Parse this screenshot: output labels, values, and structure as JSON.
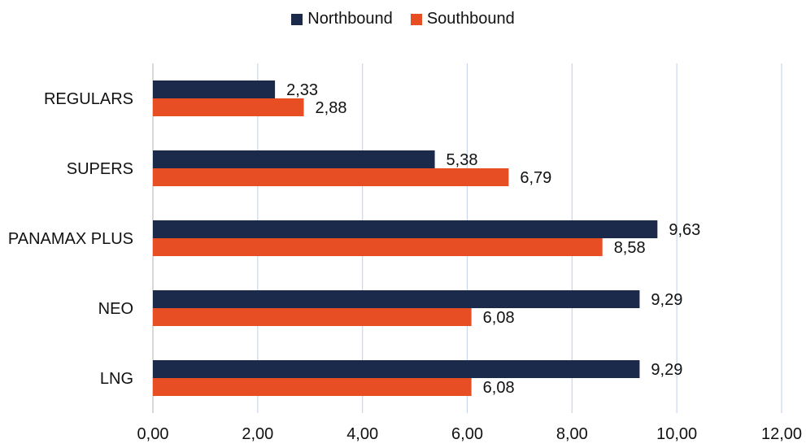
{
  "chart_data": {
    "type": "bar",
    "orientation": "horizontal",
    "categories": [
      "REGULARS",
      "SUPERS",
      "PANAMAX PLUS",
      "NEO",
      "LNG"
    ],
    "series": [
      {
        "name": "Northbound",
        "color": "#1b2a4a",
        "values": [
          2.33,
          5.38,
          9.63,
          9.29,
          9.29
        ],
        "labels": [
          "2,33",
          "5,38",
          "9,63",
          "9,29",
          "9,29"
        ]
      },
      {
        "name": "Southbound",
        "color": "#e84e24",
        "values": [
          2.88,
          6.79,
          8.58,
          6.08,
          6.08
        ],
        "labels": [
          "2,88",
          "6,79",
          "8,58",
          "6,08",
          "6,08"
        ]
      }
    ],
    "xlim": [
      0,
      12
    ],
    "x_ticks": [
      0,
      2,
      4,
      6,
      8,
      10,
      12
    ],
    "x_tick_labels": [
      "0,00",
      "2,00",
      "4,00",
      "6,00",
      "8,00",
      "10,00",
      "12,00"
    ],
    "grid": "vertical",
    "legend_position": "top-center"
  }
}
